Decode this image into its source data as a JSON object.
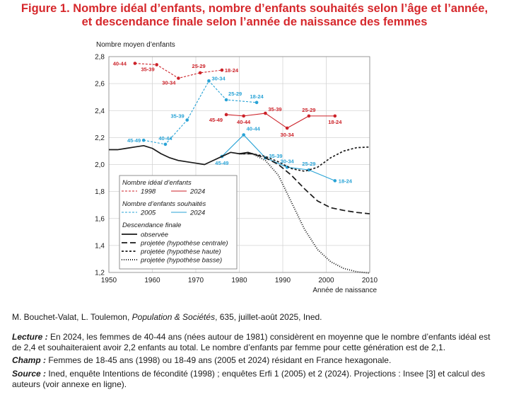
{
  "figure": {
    "title_line1": "Figure 1. Nombre idéal d’enfants, nombre d’enfants souhaités selon l’âge et l’année,",
    "title_line2": "et descendance finale selon l’année de naissance des femmes"
  },
  "chart_data": {
    "type": "line",
    "ylabel": "Nombre moyen d’enfants",
    "xlabel": "Année de naissance",
    "xlim": [
      1950,
      2010
    ],
    "ylim": [
      1.2,
      2.8
    ],
    "x_ticks": [
      "1950",
      "1960",
      "1970",
      "1980",
      "1990",
      "2000",
      "2010"
    ],
    "y_ticks": [
      "1,2",
      "1,4",
      "1,6",
      "1,8",
      "2,0",
      "2,2",
      "2,4",
      "2,6",
      "2,8"
    ],
    "colors": {
      "red": "#cc2229",
      "blue": "#29a3d6",
      "black": "#1a1a1a"
    },
    "grid": true,
    "legend_position": "bottom-left",
    "legend": {
      "group1_title": "Nombre idéal d’enfants",
      "group2_title": "Nombre d’enfants souhaités",
      "group3_title": "Descendance finale",
      "ideal_1998": "1998",
      "ideal_2024": "2024",
      "souh_2005": "2005",
      "souh_2024": "2024",
      "observee": "observée",
      "centrale": "projetée (hypothèse centrale)",
      "haute": "projetée (hypothèse haute)",
      "basse": "projetée (hypothèse basse)"
    },
    "series": [
      {
        "name": "1998",
        "group": "Nombre idéal d’enfants",
        "color": "#cc2229",
        "style": "dashed",
        "x": [
          1956,
          1961,
          1966,
          1971,
          1976
        ],
        "y": [
          2.75,
          2.74,
          2.64,
          2.68,
          2.7
        ],
        "labels": [
          "40-44",
          "35-39",
          "30-34",
          "25-29",
          "18-24"
        ]
      },
      {
        "name": "2024",
        "group": "Nombre idéal d’enfants",
        "color": "#cc2229",
        "style": "solid",
        "x": [
          1977,
          1981,
          1986,
          1991,
          1996,
          2002
        ],
        "y": [
          2.37,
          2.36,
          2.38,
          2.27,
          2.36,
          2.36
        ],
        "labels": [
          "45-49",
          "40-44",
          "35-39",
          "30-34",
          "25-29",
          "18-24"
        ]
      },
      {
        "name": "2005",
        "group": "Nombre d’enfants souhaités",
        "color": "#29a3d6",
        "style": "dashed",
        "x": [
          1958,
          1963,
          1968,
          1973,
          1977,
          1984
        ],
        "y": [
          2.18,
          2.15,
          2.33,
          2.62,
          2.48,
          2.46
        ],
        "labels": [
          "45-49",
          "40-44",
          "35-39",
          "30-34",
          "25-29",
          "18-24"
        ]
      },
      {
        "name": "2024",
        "group": "Nombre d’enfants souhaités",
        "color": "#29a3d6",
        "style": "solid",
        "x": [
          1976,
          1981,
          1986,
          1991,
          1996,
          2002
        ],
        "y": [
          2.06,
          2.22,
          2.05,
          1.98,
          1.96,
          1.88
        ],
        "labels": [
          "45-49",
          "40-44",
          "35-39",
          "30-34",
          "25-29",
          "18-24"
        ]
      },
      {
        "name": "observée",
        "group": "Descendance finale",
        "color": "#1a1a1a",
        "style": "solid",
        "x": [
          1950,
          1952,
          1954,
          1956,
          1958,
          1960,
          1962,
          1964,
          1966,
          1968,
          1970,
          1972,
          1974,
          1976,
          1978,
          1980,
          1982,
          1984
        ],
        "y": [
          2.11,
          2.11,
          2.12,
          2.13,
          2.14,
          2.12,
          2.08,
          2.05,
          2.03,
          2.02,
          2.01,
          2.0,
          2.03,
          2.06,
          2.09,
          2.08,
          2.09,
          2.07
        ]
      },
      {
        "name": "projetée (hypothèse centrale)",
        "group": "Descendance finale",
        "color": "#1a1a1a",
        "style": "longdash",
        "x": [
          1980,
          1983,
          1986,
          1989,
          1992,
          1995,
          1998,
          2001,
          2004,
          2007,
          2010
        ],
        "y": [
          2.08,
          2.08,
          2.05,
          2.0,
          1.92,
          1.82,
          1.73,
          1.68,
          1.66,
          1.645,
          1.635
        ]
      },
      {
        "name": "projetée (hypothèse haute)",
        "group": "Descendance finale",
        "color": "#1a1a1a",
        "style": "shortdash",
        "x": [
          1980,
          1983,
          1986,
          1989,
          1992,
          1995,
          1998,
          2001,
          2004,
          2007,
          2010
        ],
        "y": [
          2.08,
          2.08,
          2.06,
          2.02,
          1.97,
          1.95,
          1.98,
          2.05,
          2.1,
          2.125,
          2.13
        ]
      },
      {
        "name": "projetée (hypothèse basse)",
        "group": "Descendance finale",
        "color": "#1a1a1a",
        "style": "dotted",
        "x": [
          1980,
          1983,
          1986,
          1989,
          1992,
          1995,
          1998,
          2001,
          2004,
          2007,
          2010
        ],
        "y": [
          2.08,
          2.08,
          2.03,
          1.92,
          1.72,
          1.52,
          1.37,
          1.28,
          1.23,
          1.205,
          1.195
        ]
      }
    ]
  },
  "notes": {
    "source_ref_pre": "M. Bouchet-Valat, L. Toulemon, ",
    "source_ref_journal": "Population & Sociétés",
    "source_ref_post": ", 635, juillet-août 2025, Ined.",
    "lecture_label": "Lecture :",
    "lecture_text": " En 2024, les femmes de 40-44 ans (nées autour de 1981) considèrent en moyenne que le nombre d’enfants idéal est de 2,4 et souhaiteraient avoir 2,2 enfants au total. Le nombre d’enfants par femme pour cette génération est de 2,1.",
    "champ_label": "Champ :",
    "champ_text": " Femmes de 18-45 ans (1998) ou 18-49 ans (2005 et 2024) résidant en France hexagonale.",
    "source_label": "Source :",
    "source_text": " Ined, enquête Intentions de fécondité (1998) ; enquêtes Erfi 1 (2005) et 2 (2024). Projections : Insee [3] et calcul des auteurs (voir annexe en ligne)."
  }
}
